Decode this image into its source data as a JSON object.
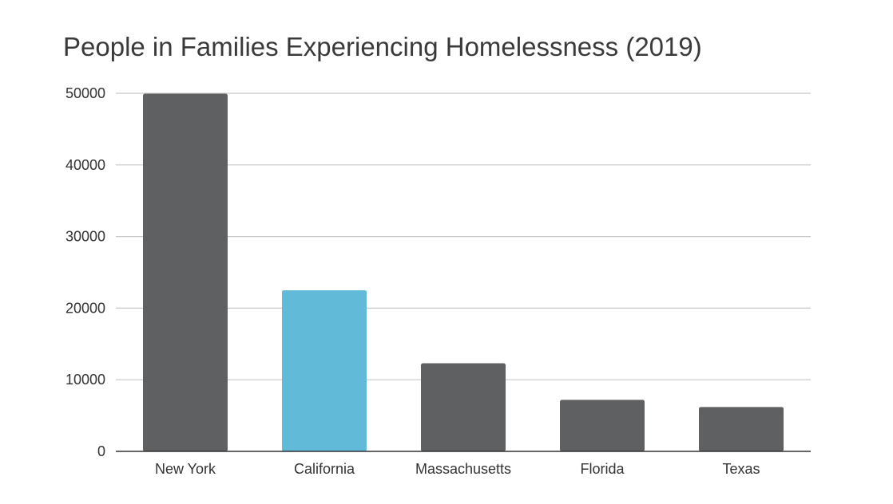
{
  "chart_data": {
    "type": "bar",
    "title": "People in Families Experiencing Homelessness (2019)",
    "xlabel": "",
    "ylabel": "",
    "categories": [
      "New York",
      "California",
      "Massachusetts",
      "Florida",
      "Texas"
    ],
    "values": [
      49945,
      22500,
      12300,
      7200,
      6200
    ],
    "bar_colors": [
      "#5f6062",
      "#62bad9",
      "#5f6062",
      "#5f6062",
      "#5f6062"
    ],
    "ylim": [
      0,
      50000
    ],
    "yticks": [
      0,
      10000,
      20000,
      30000,
      40000,
      50000
    ],
    "ytick_labels": [
      "0",
      "10000",
      "20000",
      "30000",
      "40000",
      "50000"
    ],
    "grid": true,
    "grid_color": "#c8c8c8",
    "legend": "none"
  }
}
